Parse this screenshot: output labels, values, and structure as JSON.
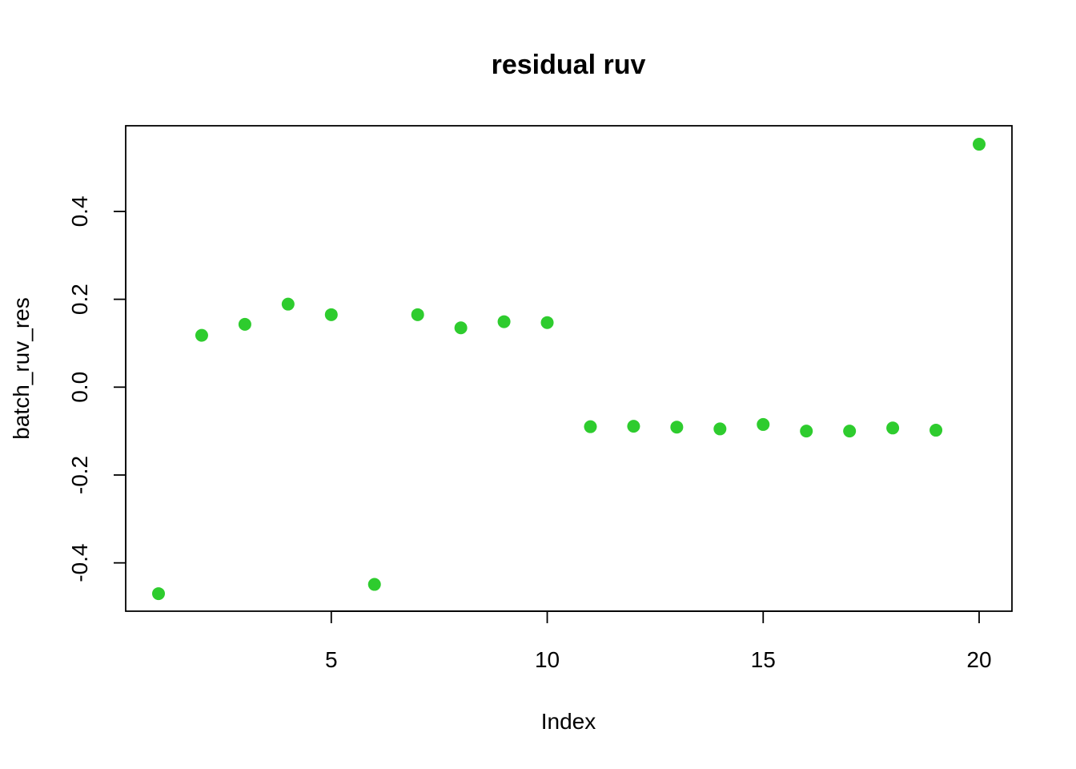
{
  "chart_data": {
    "type": "scatter",
    "title": "residual ruv",
    "xlabel": "Index",
    "ylabel": "batch_ruv_res",
    "xlim": [
      0.24,
      20.76
    ],
    "ylim": [
      -0.51,
      0.595
    ],
    "x_ticks": [
      5,
      10,
      15,
      20
    ],
    "y_ticks": [
      -0.4,
      -0.2,
      0.0,
      0.2,
      0.4
    ],
    "x_tick_labels": [
      "5",
      "10",
      "15",
      "20"
    ],
    "y_tick_labels": [
      "-0.4",
      "-0.2",
      "0.0",
      "0.2",
      "0.4"
    ],
    "grid": false,
    "marker": "filled-circle",
    "point_color": "#2ECC2E",
    "x": [
      1,
      2,
      3,
      4,
      5,
      6,
      7,
      8,
      9,
      10,
      11,
      12,
      13,
      14,
      15,
      16,
      17,
      18,
      19,
      20
    ],
    "y": [
      -0.47,
      0.118,
      0.143,
      0.189,
      0.165,
      -0.449,
      0.165,
      0.135,
      0.149,
      0.147,
      -0.09,
      -0.089,
      -0.091,
      -0.095,
      -0.085,
      -0.1,
      -0.1,
      -0.093,
      -0.098,
      0.553
    ]
  }
}
